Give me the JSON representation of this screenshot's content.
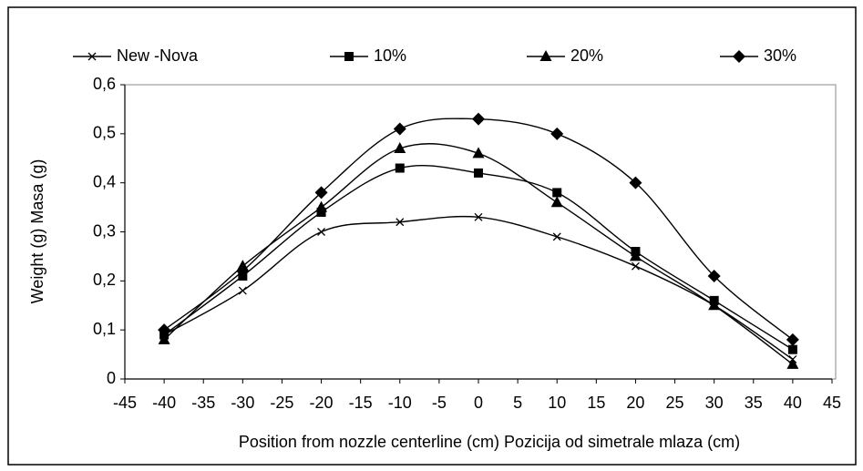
{
  "chart_data": {
    "type": "line",
    "xlabel": "Position from nozzle centerline (cm)  Pozicija od simetrale mlaza  (cm)",
    "ylabel": "Weight  (g) Masa (g)",
    "x": [
      -40,
      -30,
      -20,
      -10,
      0,
      10,
      20,
      30,
      40
    ],
    "series": [
      {
        "name": "New -Nova",
        "color": "#000000",
        "marker": "x",
        "values": [
          0.09,
          0.18,
          0.3,
          0.32,
          0.33,
          0.29,
          0.23,
          0.15,
          0.04
        ]
      },
      {
        "name": "10%",
        "color": "#000000",
        "marker": "square",
        "values": [
          0.09,
          0.21,
          0.34,
          0.43,
          0.42,
          0.38,
          0.26,
          0.16,
          0.06
        ]
      },
      {
        "name": "20%",
        "color": "#000000",
        "marker": "triangle",
        "values": [
          0.08,
          0.23,
          0.35,
          0.47,
          0.46,
          0.36,
          0.25,
          0.15,
          0.03
        ]
      },
      {
        "name": "30%",
        "color": "#000000",
        "marker": "diamond",
        "values": [
          0.1,
          0.22,
          0.38,
          0.51,
          0.53,
          0.5,
          0.4,
          0.21,
          0.08
        ]
      }
    ],
    "xlim": [
      -45,
      45
    ],
    "xticks": [
      -45,
      -40,
      -35,
      -30,
      -25,
      -20,
      -15,
      -10,
      -5,
      0,
      5,
      10,
      15,
      20,
      25,
      30,
      35,
      40,
      45
    ],
    "ylim": [
      0,
      0.6
    ],
    "yticks": [
      0,
      {
        "value": 0.1,
        "label": "0,1"
      },
      {
        "value": 0.2,
        "label": "0,2"
      },
      {
        "value": 0.3,
        "label": "0,3"
      },
      {
        "value": 0.4,
        "label": "0,4"
      },
      {
        "value": 0.5,
        "label": "0,5"
      },
      {
        "value": 0.6,
        "label": "0,6"
      }
    ],
    "legend": "top",
    "smooth": true,
    "grid": false
  }
}
